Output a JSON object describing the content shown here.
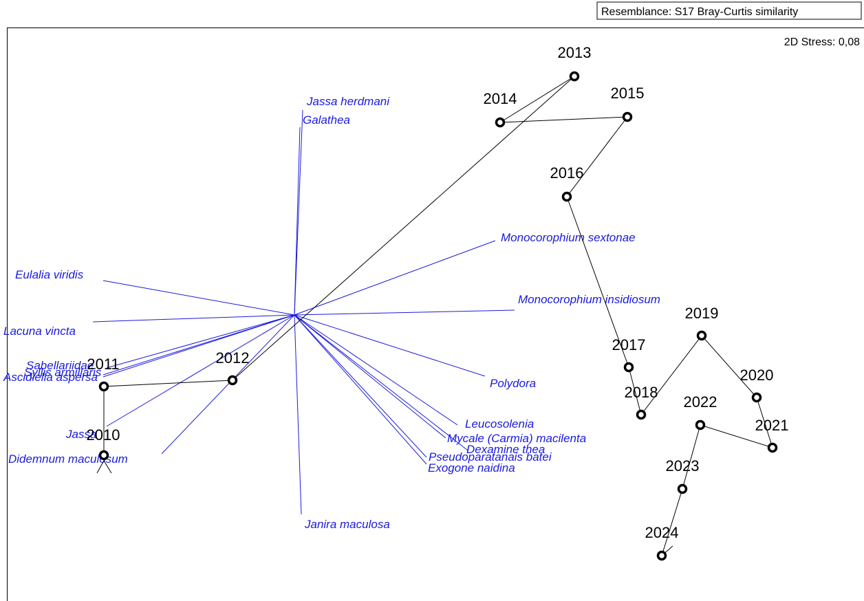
{
  "header": {
    "resemblance": "Resemblance: S17 Bray-Curtis similarity",
    "stress": "2D Stress: 0,08"
  },
  "samples": [
    "2010",
    "2011",
    "2012",
    "2013",
    "2014",
    "2015",
    "2016",
    "2017",
    "2018",
    "2019",
    "2020",
    "2021",
    "2022",
    "2023",
    "2024"
  ],
  "vectors": [
    "Jassa herdmani",
    "Galathea",
    "Monocorophium sextonae",
    "Eulalia viridis",
    "Monocorophium insidiosum",
    "Lacuna vincta",
    "Sabellariidae",
    "Syllis armillaris",
    "Ascidiella aspersa",
    "Polydora",
    "Jassa",
    "Didemnum maculosum",
    "Leucosolenia",
    "Mycale (Carmia) macilenta",
    "Dexamine thea",
    "Pseudoparatanais batei",
    "Exogone naidina",
    "Janira maculosa"
  ]
}
